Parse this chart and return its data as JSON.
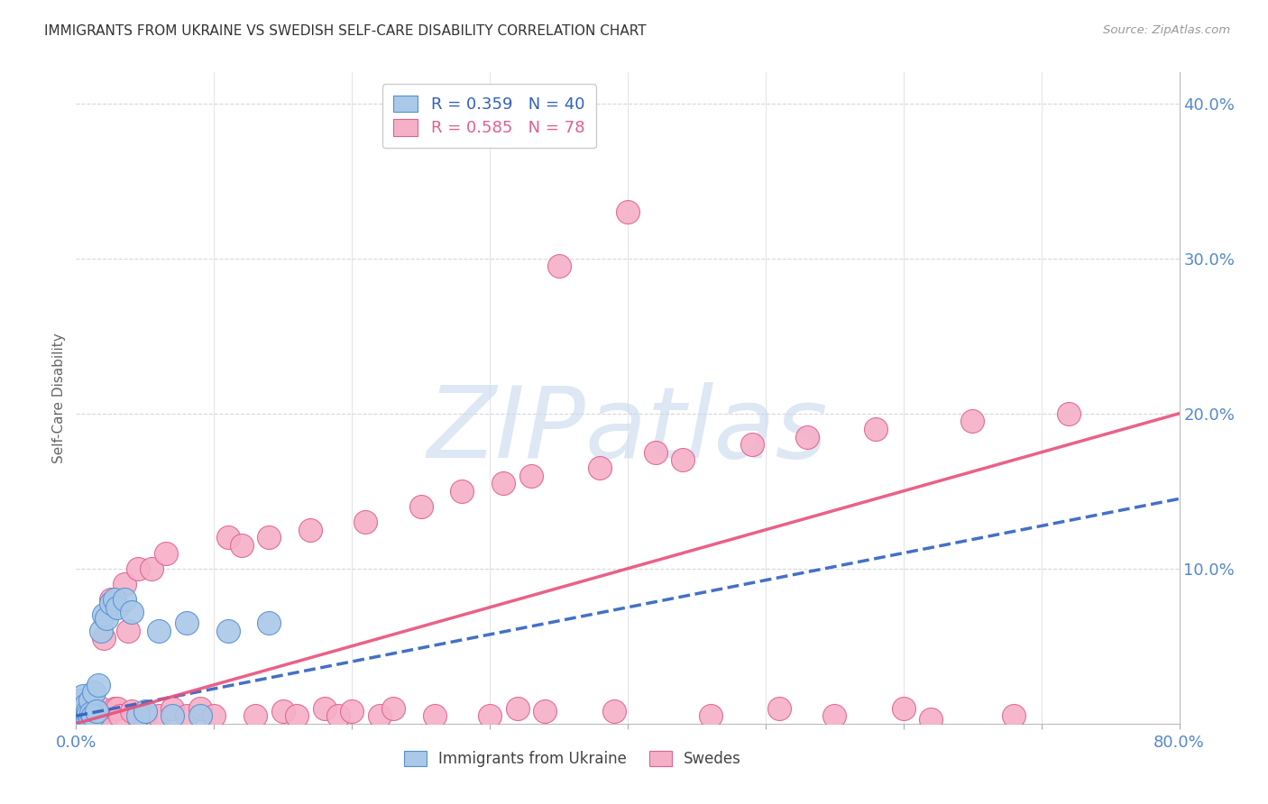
{
  "title": "IMMIGRANTS FROM UKRAINE VS SWEDISH SELF-CARE DISABILITY CORRELATION CHART",
  "source": "Source: ZipAtlas.com",
  "ylabel": "Self-Care Disability",
  "xlim": [
    0.0,
    0.8
  ],
  "ylim": [
    0.0,
    0.42
  ],
  "ukraine_color": "#aac8e8",
  "ukraine_edge_color": "#5590d0",
  "swedes_color": "#f5b0c8",
  "swedes_edge_color": "#e06090",
  "ukraine_line_color": "#3060c0",
  "swedes_line_color": "#e8507a",
  "watermark_text": "ZIPatlas",
  "watermark_color": "#c8d8ee",
  "background_color": "#ffffff",
  "grid_color": "#d8d8d8",
  "title_color": "#333333",
  "source_color": "#999999",
  "axis_label_color": "#5588cc",
  "legend_ukraine_label": "R = 0.359   N = 40",
  "legend_swedes_label": "R = 0.585   N = 78",
  "ukraine_scatter_x": [
    0.001,
    0.001,
    0.002,
    0.002,
    0.003,
    0.003,
    0.004,
    0.004,
    0.005,
    0.005,
    0.006,
    0.006,
    0.007,
    0.007,
    0.008,
    0.008,
    0.009,
    0.01,
    0.01,
    0.011,
    0.012,
    0.013,
    0.015,
    0.016,
    0.018,
    0.02,
    0.022,
    0.025,
    0.028,
    0.03,
    0.035,
    0.04,
    0.045,
    0.05,
    0.06,
    0.07,
    0.08,
    0.09,
    0.11,
    0.14
  ],
  "ukraine_scatter_y": [
    0.005,
    0.01,
    0.003,
    0.008,
    0.002,
    0.012,
    0.004,
    0.015,
    0.006,
    0.018,
    0.003,
    0.01,
    0.005,
    0.012,
    0.004,
    0.008,
    0.006,
    0.003,
    0.015,
    0.007,
    0.005,
    0.02,
    0.008,
    0.025,
    0.06,
    0.07,
    0.068,
    0.078,
    0.08,
    0.075,
    0.08,
    0.072,
    0.005,
    0.008,
    0.06,
    0.005,
    0.065,
    0.005,
    0.06,
    0.065
  ],
  "swedes_scatter_x": [
    0.001,
    0.001,
    0.002,
    0.002,
    0.003,
    0.003,
    0.004,
    0.004,
    0.005,
    0.005,
    0.006,
    0.007,
    0.008,
    0.009,
    0.01,
    0.01,
    0.011,
    0.012,
    0.013,
    0.015,
    0.016,
    0.018,
    0.02,
    0.022,
    0.025,
    0.028,
    0.03,
    0.032,
    0.035,
    0.038,
    0.04,
    0.045,
    0.05,
    0.055,
    0.06,
    0.065,
    0.07,
    0.08,
    0.09,
    0.1,
    0.11,
    0.12,
    0.13,
    0.14,
    0.15,
    0.16,
    0.17,
    0.18,
    0.19,
    0.2,
    0.21,
    0.22,
    0.23,
    0.25,
    0.26,
    0.28,
    0.3,
    0.31,
    0.32,
    0.33,
    0.34,
    0.35,
    0.38,
    0.39,
    0.4,
    0.42,
    0.44,
    0.46,
    0.49,
    0.51,
    0.53,
    0.55,
    0.58,
    0.6,
    0.62,
    0.65,
    0.68,
    0.72
  ],
  "swedes_scatter_y": [
    0.005,
    0.01,
    0.003,
    0.008,
    0.002,
    0.012,
    0.004,
    0.015,
    0.003,
    0.01,
    0.005,
    0.008,
    0.003,
    0.01,
    0.002,
    0.008,
    0.005,
    0.01,
    0.003,
    0.008,
    0.005,
    0.01,
    0.055,
    0.005,
    0.08,
    0.01,
    0.01,
    0.005,
    0.09,
    0.06,
    0.008,
    0.1,
    0.005,
    0.1,
    0.005,
    0.11,
    0.01,
    0.005,
    0.01,
    0.005,
    0.12,
    0.115,
    0.005,
    0.12,
    0.008,
    0.005,
    0.125,
    0.01,
    0.005,
    0.008,
    0.13,
    0.005,
    0.01,
    0.14,
    0.005,
    0.15,
    0.005,
    0.155,
    0.01,
    0.16,
    0.008,
    0.295,
    0.165,
    0.008,
    0.33,
    0.175,
    0.17,
    0.005,
    0.18,
    0.01,
    0.185,
    0.005,
    0.19,
    0.01,
    0.003,
    0.195,
    0.005,
    0.2
  ],
  "ukraine_trendline_x": [
    0.0,
    0.8
  ],
  "ukraine_trendline_y": [
    0.005,
    0.145
  ],
  "swedes_trendline_x": [
    0.0,
    0.8
  ],
  "swedes_trendline_y": [
    0.0,
    0.2
  ]
}
